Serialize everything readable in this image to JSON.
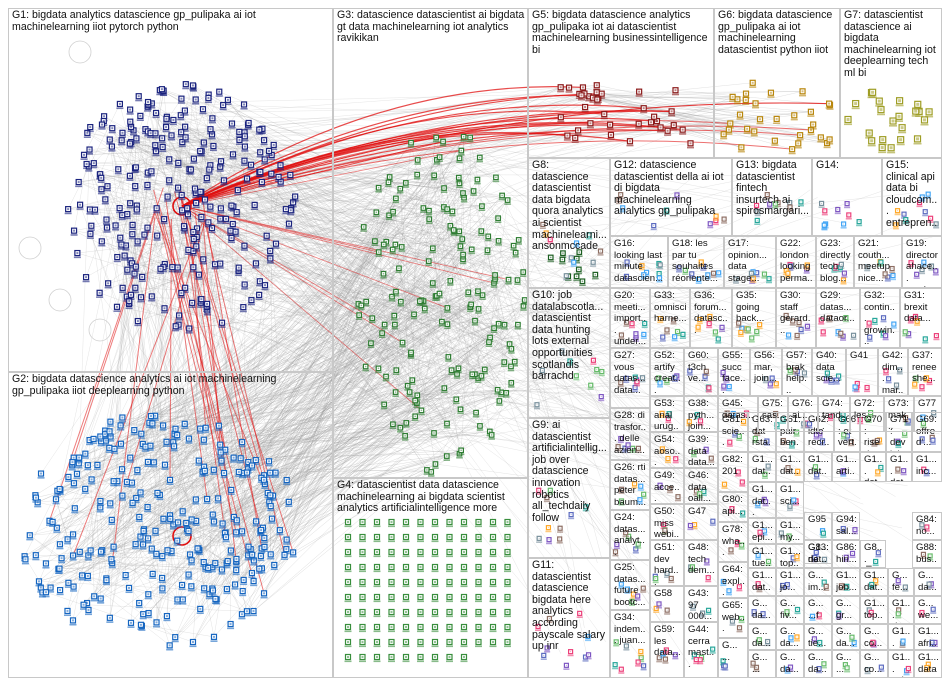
{
  "groups": [
    {
      "id": "G1",
      "label": "G1: bigdata analytics datascience gp_pulipaka ai iot machinelearning iiot pytorch python"
    },
    {
      "id": "G2",
      "label": "G2: bigdata datascience analytics ai iot machinelearning gp_pulipaka iiot deeplearning python"
    },
    {
      "id": "G3",
      "label": "G3: datascience datascientist ai bigdata gt data machinelearning iot analytics ravikikan"
    },
    {
      "id": "G4",
      "label": "G4: datascientist data datascience machinelearning ai bigdata scientist analytics artificialintelligence more"
    },
    {
      "id": "G5",
      "label": "G5: bigdata datascience analytics gp_pulipaka iot ai datascientist machinelearning businessintelligence bi"
    },
    {
      "id": "G6",
      "label": "G6: bigdata datascience gp_pulipaka ai iot machinelearning datascientist python iiot"
    },
    {
      "id": "G7",
      "label": "G7: datascientist datascience ai bigdata machinelearning iot deeplearning tech ml bi"
    },
    {
      "id": "G8",
      "label": "G8: datascience datascientist data bigdata quora analytics ai scientist machinelearni... ansonmccade"
    },
    {
      "id": "G9",
      "label": "G9: ai datascientist artificialintellig... job over datascience innovation robotics all_techdaily follow"
    },
    {
      "id": "G10",
      "label": "G10: job datalabscotla... datascientist data hunting lots external opportunities scotlandis barrachd"
    },
    {
      "id": "G11",
      "label": "G11: datascientist datascience bigdata here analytics according payscale salary up inr"
    },
    {
      "id": "G12",
      "label": "G12: datascience datascientist della ai iot di bigdata machinelearning analytics gp_pulipaka"
    },
    {
      "id": "G13",
      "label": "G13: bigdata datascientist fintech insurtech ai spirosmargari..."
    },
    {
      "id": "G14",
      "label": "G14:"
    },
    {
      "id": "G15",
      "label": "G15: clinical api data bi cloudcom... entrepren..."
    },
    {
      "id": "G16",
      "label": "G16: looking last minute datascien..."
    },
    {
      "id": "G17",
      "label": "G17: opinion... data stage..."
    },
    {
      "id": "G18",
      "label": "G18: les par tu souhaites réoriente..."
    },
    {
      "id": "G19",
      "label": "G19: director ahace... wante..."
    },
    {
      "id": "G20",
      "label": "G20: meeti... import... under..."
    },
    {
      "id": "G21",
      "label": "G21: couth... meetup nice..."
    },
    {
      "id": "G22",
      "label": "G22: london looking perma..."
    },
    {
      "id": "G23",
      "label": "G23: directly tech blog..."
    },
    {
      "id": "G24",
      "label": "G24: datas... analyt... datas..."
    },
    {
      "id": "G25",
      "label": "G25: datas... future bootc..."
    },
    {
      "id": "G26",
      "label": "G26: rti datas... peter baum..."
    },
    {
      "id": "G27",
      "label": "G27: vous datas... data..."
    },
    {
      "id": "G28",
      "label": "G28: di trasfor... delle azien..."
    },
    {
      "id": "G29",
      "label": "G29: datas... dataor..."
    },
    {
      "id": "G30",
      "label": "G30: staff gerard..."
    },
    {
      "id": "G31",
      "label": "G31: brexit data..."
    },
    {
      "id": "G32",
      "label": "G32: contin... growin..."
    },
    {
      "id": "G33",
      "label": "G33: omnisci harne..."
    },
    {
      "id": "G34",
      "label": "G34: indem... juan..."
    },
    {
      "id": "G35",
      "label": "G35: going back..."
    },
    {
      "id": "G36",
      "label": "G36: forum... datasc..."
    },
    {
      "id": "G37",
      "label": "G37: renee she..."
    },
    {
      "id": "G38",
      "label": "G38: pyth... join..."
    },
    {
      "id": "G39",
      "label": "G39: data data..."
    },
    {
      "id": "G40",
      "label": "G40: data scie..."
    },
    {
      "id": "G41",
      "label": "G41"
    },
    {
      "id": "G42",
      "label": "G42: dim... mar..."
    },
    {
      "id": "G43",
      "label": "G43: 97 000..."
    },
    {
      "id": "G44",
      "label": "G44: cerra mast..."
    },
    {
      "id": "G45",
      "label": "G45: datas..."
    },
    {
      "id": "G46",
      "label": "G46: data oall..."
    },
    {
      "id": "G47",
      "label": "G47"
    },
    {
      "id": "G48",
      "label": "G48: tech dem..."
    },
    {
      "id": "G49",
      "label": "G49: acce... intelli..."
    },
    {
      "id": "G50",
      "label": "G50: miss webi..."
    },
    {
      "id": "G51",
      "label": "G51: dev hard..."
    },
    {
      "id": "G52",
      "label": "G52: artify creat..."
    },
    {
      "id": "G53",
      "label": "G53: anal urug..."
    },
    {
      "id": "G54",
      "label": "G54: aoso... few..."
    },
    {
      "id": "G55",
      "label": "G55: succ face..."
    },
    {
      "id": "G56",
      "label": "G56: mar, join..."
    },
    {
      "id": "G57",
      "label": "G57: brak help..."
    },
    {
      "id": "G58",
      "label": "G58"
    },
    {
      "id": "G59",
      "label": "G59: les data..."
    },
    {
      "id": "G60",
      "label": "G60: t3ch ve..."
    },
    {
      "id": "G61",
      "label": "G61: pair ben..."
    },
    {
      "id": "G62",
      "label": "G62: idte recr..."
    },
    {
      "id": "G63",
      "label": "G63: dat rsta..."
    },
    {
      "id": "G64",
      "label": "G64: expl..."
    },
    {
      "id": "G65",
      "label": "G65: web..."
    },
    {
      "id": "G66",
      "label": "G66: et vert..."
    },
    {
      "id": "G69",
      "label": "G69: offre d'..."
    },
    {
      "id": "G70",
      "label": "G70: rise date..."
    },
    {
      "id": "G71",
      "label": "G71: dev join..."
    },
    {
      "id": "G72",
      "label": "G72: les..."
    },
    {
      "id": "G73",
      "label": "G73: mak..."
    },
    {
      "id": "G74",
      "label": "G74: tand..."
    },
    {
      "id": "G75",
      "label": "G75: sas..."
    },
    {
      "id": "G76",
      "label": "G76: ai..."
    },
    {
      "id": "G77",
      "label": "G77"
    },
    {
      "id": "G78",
      "label": "G78: wha..."
    },
    {
      "id": "G80",
      "label": "G80: api..."
    },
    {
      "id": "G81",
      "label": "G81: scie..."
    },
    {
      "id": "G82",
      "label": "G82: 201"
    },
    {
      "id": "G83",
      "label": "G83: ne..."
    },
    {
      "id": "G84",
      "label": "G84: no..."
    },
    {
      "id": "G86",
      "label": "G86: hiri..."
    },
    {
      "id": "G88",
      "label": "G88: bus..."
    },
    {
      "id": "G94",
      "label": "G94: sal..."
    },
    {
      "id": "G95",
      "label": "G95"
    },
    {
      "id": "s01",
      "label": "G1... dat..."
    },
    {
      "id": "s02",
      "label": "G1... dat..."
    },
    {
      "id": "s03",
      "label": "G1... dat..."
    },
    {
      "id": "s04",
      "label": "G1... arti..."
    },
    {
      "id": "s05",
      "label": "G1... dat..."
    },
    {
      "id": "s06",
      "label": "G1... dat..."
    },
    {
      "id": "s07",
      "label": "G1... inc..."
    },
    {
      "id": "s08",
      "label": "G1... dat..."
    },
    {
      "id": "s09",
      "label": "G1... sci..."
    },
    {
      "id": "s10",
      "label": "G1... epi..."
    },
    {
      "id": "s11",
      "label": "G1... my..."
    },
    {
      "id": "s12",
      "label": "G1... dat..."
    },
    {
      "id": "s13",
      "label": "G1... tue..."
    },
    {
      "id": "s14",
      "label": "G1... top..."
    },
    {
      "id": "s15",
      "label": "G1... dat..."
    },
    {
      "id": "s16",
      "label": "G1... jo..."
    },
    {
      "id": "s17",
      "label": "G... im..."
    },
    {
      "id": "s18",
      "label": "G1... job..."
    },
    {
      "id": "s19",
      "label": "G1... dat..."
    },
    {
      "id": "s20",
      "label": "G... fe..."
    },
    {
      "id": "s21",
      "label": "G... da..."
    },
    {
      "id": "s22",
      "label": "G... da..."
    },
    {
      "id": "s23",
      "label": "G... fiv..."
    },
    {
      "id": "s24",
      "label": "G... ...f"
    },
    {
      "id": "s25",
      "label": "G... gr..."
    },
    {
      "id": "s26",
      "label": "G1... top..."
    },
    {
      "id": "s27",
      "label": "G1... dat..."
    },
    {
      "id": "s28",
      "label": "G... we..."
    },
    {
      "id": "s29",
      "label": "G... ..."
    },
    {
      "id": "s30",
      "label": "G... da..."
    },
    {
      "id": "s31",
      "label": "G... da..."
    },
    {
      "id": "s32",
      "label": "G... tie..."
    },
    {
      "id": "s33",
      "label": "G... da..."
    },
    {
      "id": "s34",
      "label": "G... co..."
    },
    {
      "id": "s35",
      "label": "G1... dat..."
    },
    {
      "id": "s36",
      "label": "G1... afri..."
    },
    {
      "id": "s37",
      "label": "G... ..."
    },
    {
      "id": "s38",
      "label": "G... da..."
    },
    {
      "id": "s39",
      "label": "G... da..."
    },
    {
      "id": "s40",
      "label": "G... ..."
    },
    {
      "id": "s41",
      "label": "G... co..."
    },
    {
      "id": "s42",
      "label": "G1... sci..."
    },
    {
      "id": "s43",
      "label": "G1... datane..."
    },
    {
      "id": "s44",
      "label": "G... ..."
    },
    {
      "id": "s45",
      "label": "G... da..."
    },
    {
      "id": "s46",
      "label": "G8... テ..."
    }
  ],
  "palette": {
    "G1": "#1a237e",
    "G2": "#1565c0",
    "G3": "#2e7d32",
    "G4": "#388e3c",
    "G5": "#8b1a1a",
    "G6": "#b8860b",
    "G7": "#9e9d24",
    "G8": "#1b5e20",
    "edge": "#9a9a9a",
    "edge_hot": "#e01010"
  }
}
